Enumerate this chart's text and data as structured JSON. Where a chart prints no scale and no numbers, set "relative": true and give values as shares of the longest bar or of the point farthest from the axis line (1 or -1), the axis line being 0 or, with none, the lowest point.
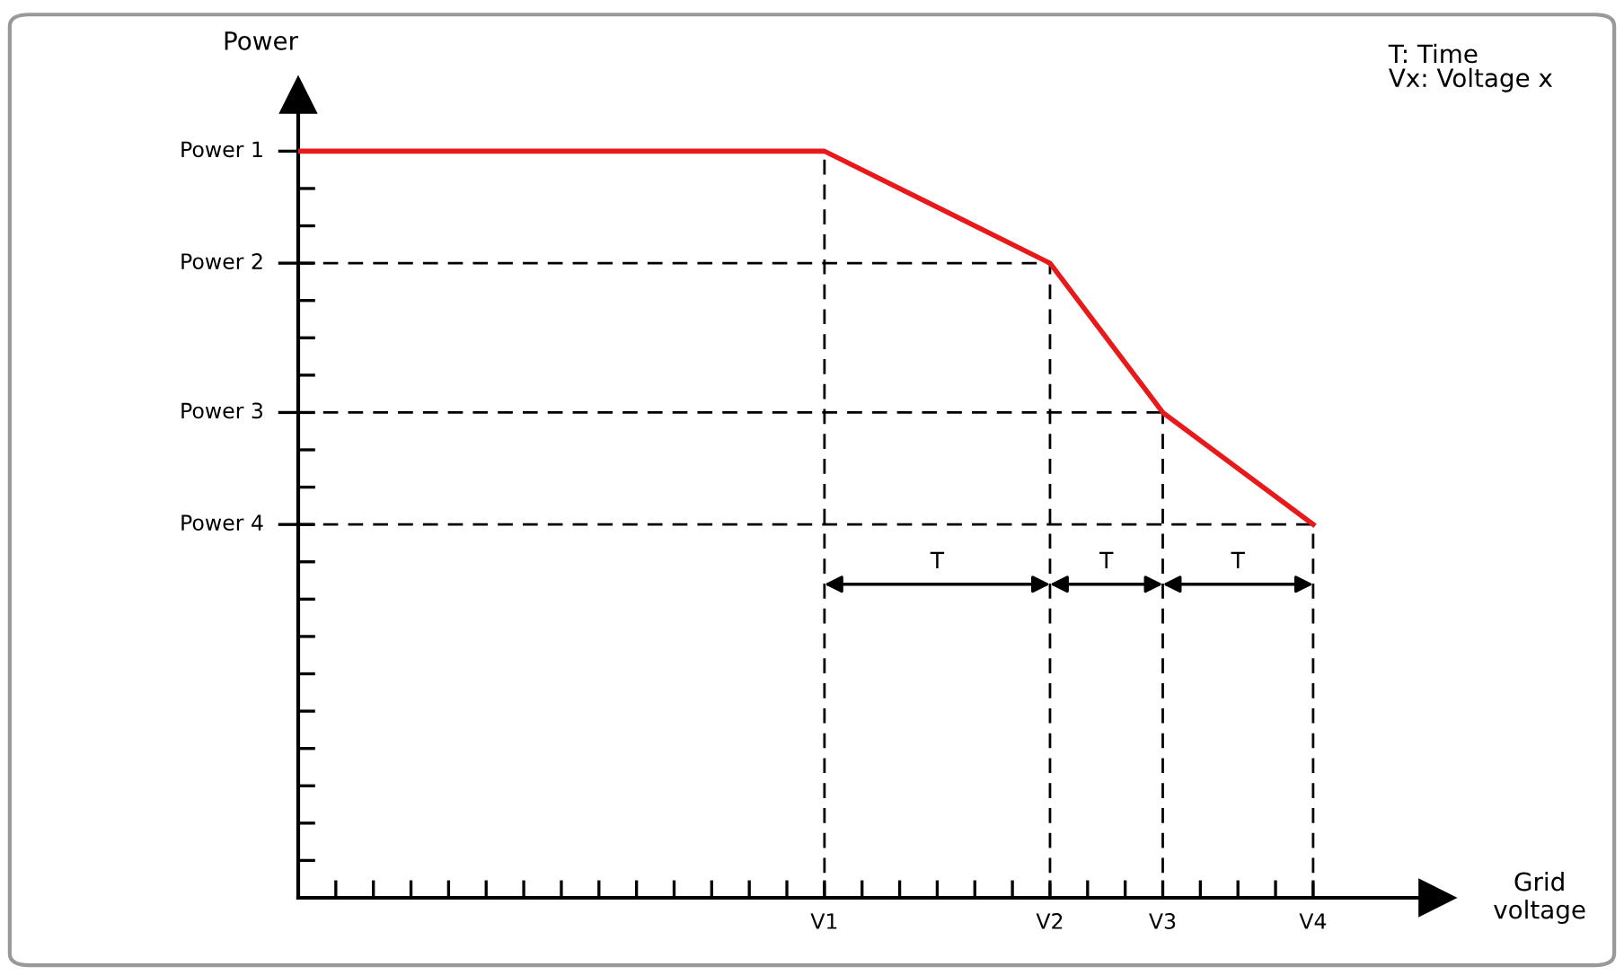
{
  "chart_data": {
    "type": "line",
    "relative": true,
    "ylabel": "Power",
    "categories": [
      null,
      null,
      null,
      null,
      null,
      null,
      null,
      null,
      null,
      null,
      null,
      null,
      null,
      null,
      "V1",
      null,
      null,
      null,
      null,
      null,
      "V2",
      null,
      null,
      "V3",
      null,
      null,
      null,
      "V4"
    ],
    "series": [
      {
        "color": "#e8191a",
        "values": [
          1,
          null,
          null,
          null,
          null,
          null,
          null,
          null,
          null,
          null,
          null,
          null,
          null,
          null,
          1,
          null,
          null,
          null,
          null,
          null,
          0.85,
          null,
          null,
          0.65,
          null,
          null,
          null,
          0.5
        ]
      }
    ],
    "ref_lines": [
      {
        "axis": "y",
        "value": 1,
        "label": "Power 1"
      },
      {
        "axis": "y",
        "value": 0.85,
        "label": "Power 2",
        "line_style": "dashed"
      },
      {
        "axis": "y",
        "value": 0.65,
        "label": "Power 3",
        "line_style": "dashed"
      },
      {
        "axis": "y",
        "value": 0.5,
        "label": "Power 4",
        "line_style": "dashed"
      },
      {
        "axis": "x",
        "value": "V1",
        "line_style": "dashed"
      },
      {
        "axis": "x",
        "value": "V2",
        "line_style": "dashed"
      },
      {
        "axis": "x",
        "value": "V3",
        "line_style": "dashed"
      },
      {
        "axis": "x",
        "value": "V4",
        "line_style": "dashed"
      }
    ],
    "annotations": [
      "T",
      "T",
      "T",
      "T: Time\nVx: Voltage x",
      "Grid\nvoltage"
    ],
    "grid": false,
    "legend": false
  }
}
